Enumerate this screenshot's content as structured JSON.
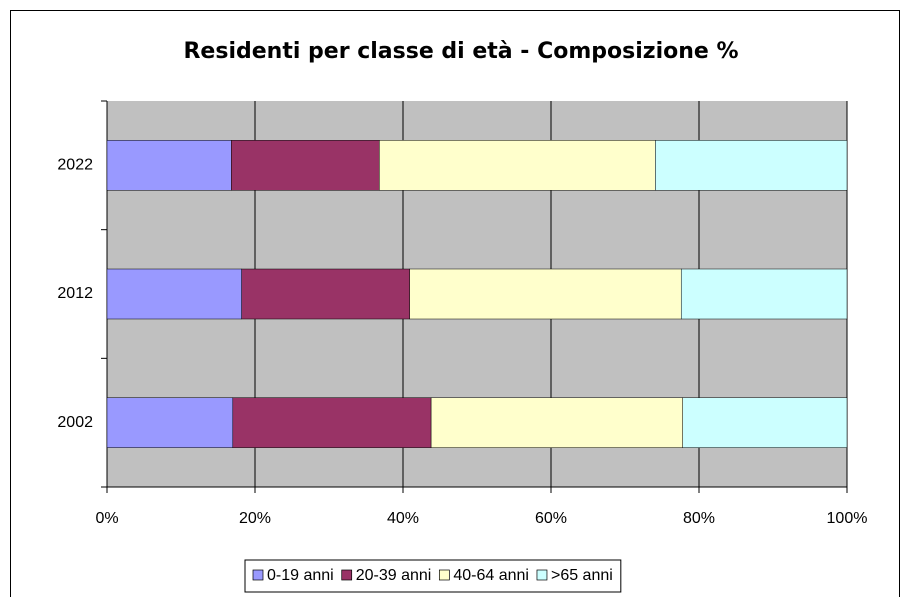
{
  "chart_data": {
    "type": "stacked-bar-horizontal",
    "title": "Residenti per classe di età - Composizione %",
    "categories": [
      "2002",
      "2012",
      "2022"
    ],
    "series": [
      {
        "name": "0-19 anni",
        "color": "#9999ff",
        "values": [
          17.0,
          18.2,
          16.8
        ]
      },
      {
        "name": "20-39 anni",
        "color": "#993366",
        "values": [
          26.8,
          22.7,
          20.0
        ]
      },
      {
        "name": "40-64 anni",
        "color": "#ffffcc",
        "values": [
          34.0,
          36.7,
          37.3
        ]
      },
      {
        "name": ">65 anni",
        "color": "#ccffff",
        "values": [
          22.2,
          22.4,
          25.9
        ]
      }
    ],
    "xlim": [
      0,
      100
    ],
    "xticks": [
      {
        "value": 0,
        "label": "0%"
      },
      {
        "value": 20,
        "label": "20%"
      },
      {
        "value": 40,
        "label": "40%"
      },
      {
        "value": 60,
        "label": "60%"
      },
      {
        "value": 80,
        "label": "80%"
      },
      {
        "value": 100,
        "label": "100%"
      }
    ],
    "grid": true,
    "legend": "bottom"
  }
}
